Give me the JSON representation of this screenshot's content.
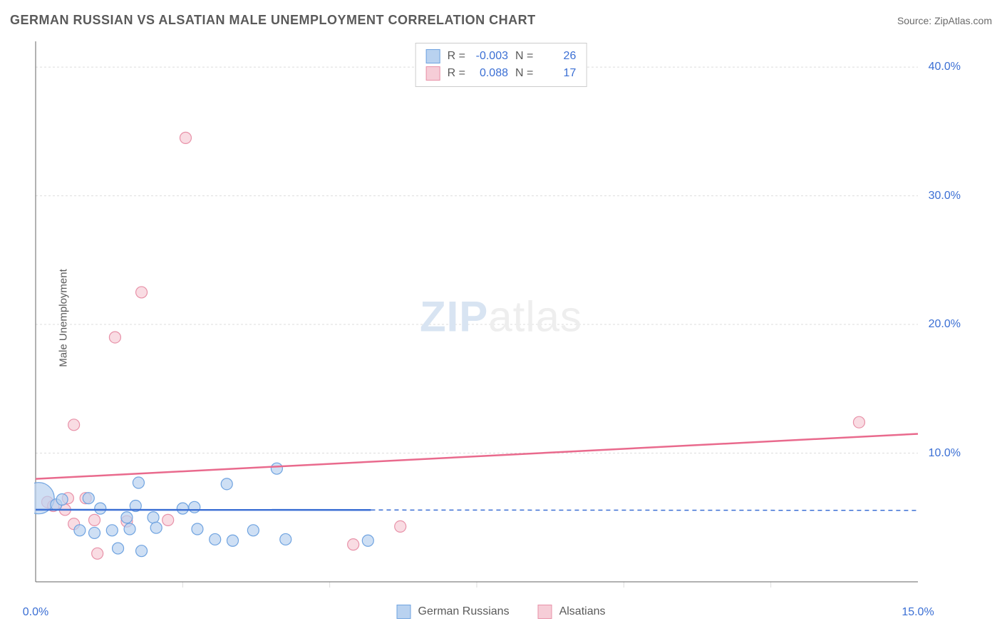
{
  "title": "GERMAN RUSSIAN VS ALSATIAN MALE UNEMPLOYMENT CORRELATION CHART",
  "source": "Source: ZipAtlas.com",
  "yaxis_label": "Male Unemployment",
  "watermark_a": "ZIP",
  "watermark_b": "atlas",
  "chart": {
    "type": "scatter",
    "xlim": [
      0,
      15
    ],
    "ylim": [
      0,
      42
    ],
    "xticks": [
      0.0,
      15.0
    ],
    "xticklabels": [
      "0.0%",
      "15.0%"
    ],
    "yticks": [
      10.0,
      20.0,
      30.0,
      40.0
    ],
    "yticklabels": [
      "10.0%",
      "20.0%",
      "30.0%",
      "40.0%"
    ],
    "x_minor_ticks": [
      2.5,
      5.0,
      7.5,
      10.0,
      12.5
    ],
    "y_gridlines": [
      0,
      10,
      20,
      30,
      40
    ],
    "axis_color": "#666666",
    "grid_color": "#dddddd",
    "tick_label_color": "#3b6fd4",
    "tick_label_fontsize": 16,
    "background_color": "#ffffff",
    "series": [
      {
        "name": "German Russians",
        "fill_color": "#b9d2f0",
        "stroke_color": "#6fa3e0",
        "line_color": "#3b6fd4",
        "line_dash_split_x": 5.7,
        "R": "-0.003",
        "N": "26",
        "points": [
          {
            "x": 0.05,
            "y": 6.5,
            "r": 22
          },
          {
            "x": 0.35,
            "y": 6.0,
            "r": 8
          },
          {
            "x": 0.45,
            "y": 6.4,
            "r": 8
          },
          {
            "x": 0.75,
            "y": 4.0,
            "r": 8
          },
          {
            "x": 0.9,
            "y": 6.5,
            "r": 8
          },
          {
            "x": 1.0,
            "y": 3.8,
            "r": 8
          },
          {
            "x": 1.1,
            "y": 5.7,
            "r": 8
          },
          {
            "x": 1.3,
            "y": 4.0,
            "r": 8
          },
          {
            "x": 1.4,
            "y": 2.6,
            "r": 8
          },
          {
            "x": 1.55,
            "y": 5.0,
            "r": 8
          },
          {
            "x": 1.6,
            "y": 4.1,
            "r": 8
          },
          {
            "x": 1.7,
            "y": 5.9,
            "r": 8
          },
          {
            "x": 1.75,
            "y": 7.7,
            "r": 8
          },
          {
            "x": 1.8,
            "y": 2.4,
            "r": 8
          },
          {
            "x": 2.0,
            "y": 5.0,
            "r": 8
          },
          {
            "x": 2.05,
            "y": 4.2,
            "r": 8
          },
          {
            "x": 2.5,
            "y": 5.7,
            "r": 8
          },
          {
            "x": 2.7,
            "y": 5.8,
            "r": 8
          },
          {
            "x": 2.75,
            "y": 4.1,
            "r": 8
          },
          {
            "x": 3.05,
            "y": 3.3,
            "r": 8
          },
          {
            "x": 3.25,
            "y": 7.6,
            "r": 8
          },
          {
            "x": 3.35,
            "y": 3.2,
            "r": 8
          },
          {
            "x": 3.7,
            "y": 4.0,
            "r": 8
          },
          {
            "x": 4.1,
            "y": 8.8,
            "r": 8
          },
          {
            "x": 4.25,
            "y": 3.3,
            "r": 8
          },
          {
            "x": 5.65,
            "y": 3.2,
            "r": 8
          }
        ],
        "trend": {
          "x1": 0,
          "y1": 5.6,
          "x2": 15,
          "y2": 5.55
        }
      },
      {
        "name": "Alsatians",
        "fill_color": "#f6cdd7",
        "stroke_color": "#e891a8",
        "line_color": "#e96a8d",
        "R": "0.088",
        "N": "17",
        "points": [
          {
            "x": 0.2,
            "y": 6.2,
            "r": 8
          },
          {
            "x": 0.3,
            "y": 5.9,
            "r": 8
          },
          {
            "x": 0.5,
            "y": 5.6,
            "r": 8
          },
          {
            "x": 0.55,
            "y": 6.5,
            "r": 8
          },
          {
            "x": 0.65,
            "y": 4.5,
            "r": 8
          },
          {
            "x": 0.65,
            "y": 12.2,
            "r": 8
          },
          {
            "x": 0.85,
            "y": 6.5,
            "r": 8
          },
          {
            "x": 1.0,
            "y": 4.8,
            "r": 8
          },
          {
            "x": 1.05,
            "y": 2.2,
            "r": 8
          },
          {
            "x": 1.35,
            "y": 19.0,
            "r": 8
          },
          {
            "x": 1.55,
            "y": 4.7,
            "r": 8
          },
          {
            "x": 1.8,
            "y": 22.5,
            "r": 8
          },
          {
            "x": 2.25,
            "y": 4.8,
            "r": 8
          },
          {
            "x": 2.55,
            "y": 34.5,
            "r": 8
          },
          {
            "x": 5.4,
            "y": 2.9,
            "r": 8
          },
          {
            "x": 6.2,
            "y": 4.3,
            "r": 8
          },
          {
            "x": 14.0,
            "y": 12.4,
            "r": 8
          }
        ],
        "trend": {
          "x1": 0,
          "y1": 8.0,
          "x2": 15,
          "y2": 11.5
        }
      }
    ],
    "legend_labels": {
      "R": "R =",
      "N": "N =",
      "series1": "German Russians",
      "series2": "Alsatians"
    }
  }
}
